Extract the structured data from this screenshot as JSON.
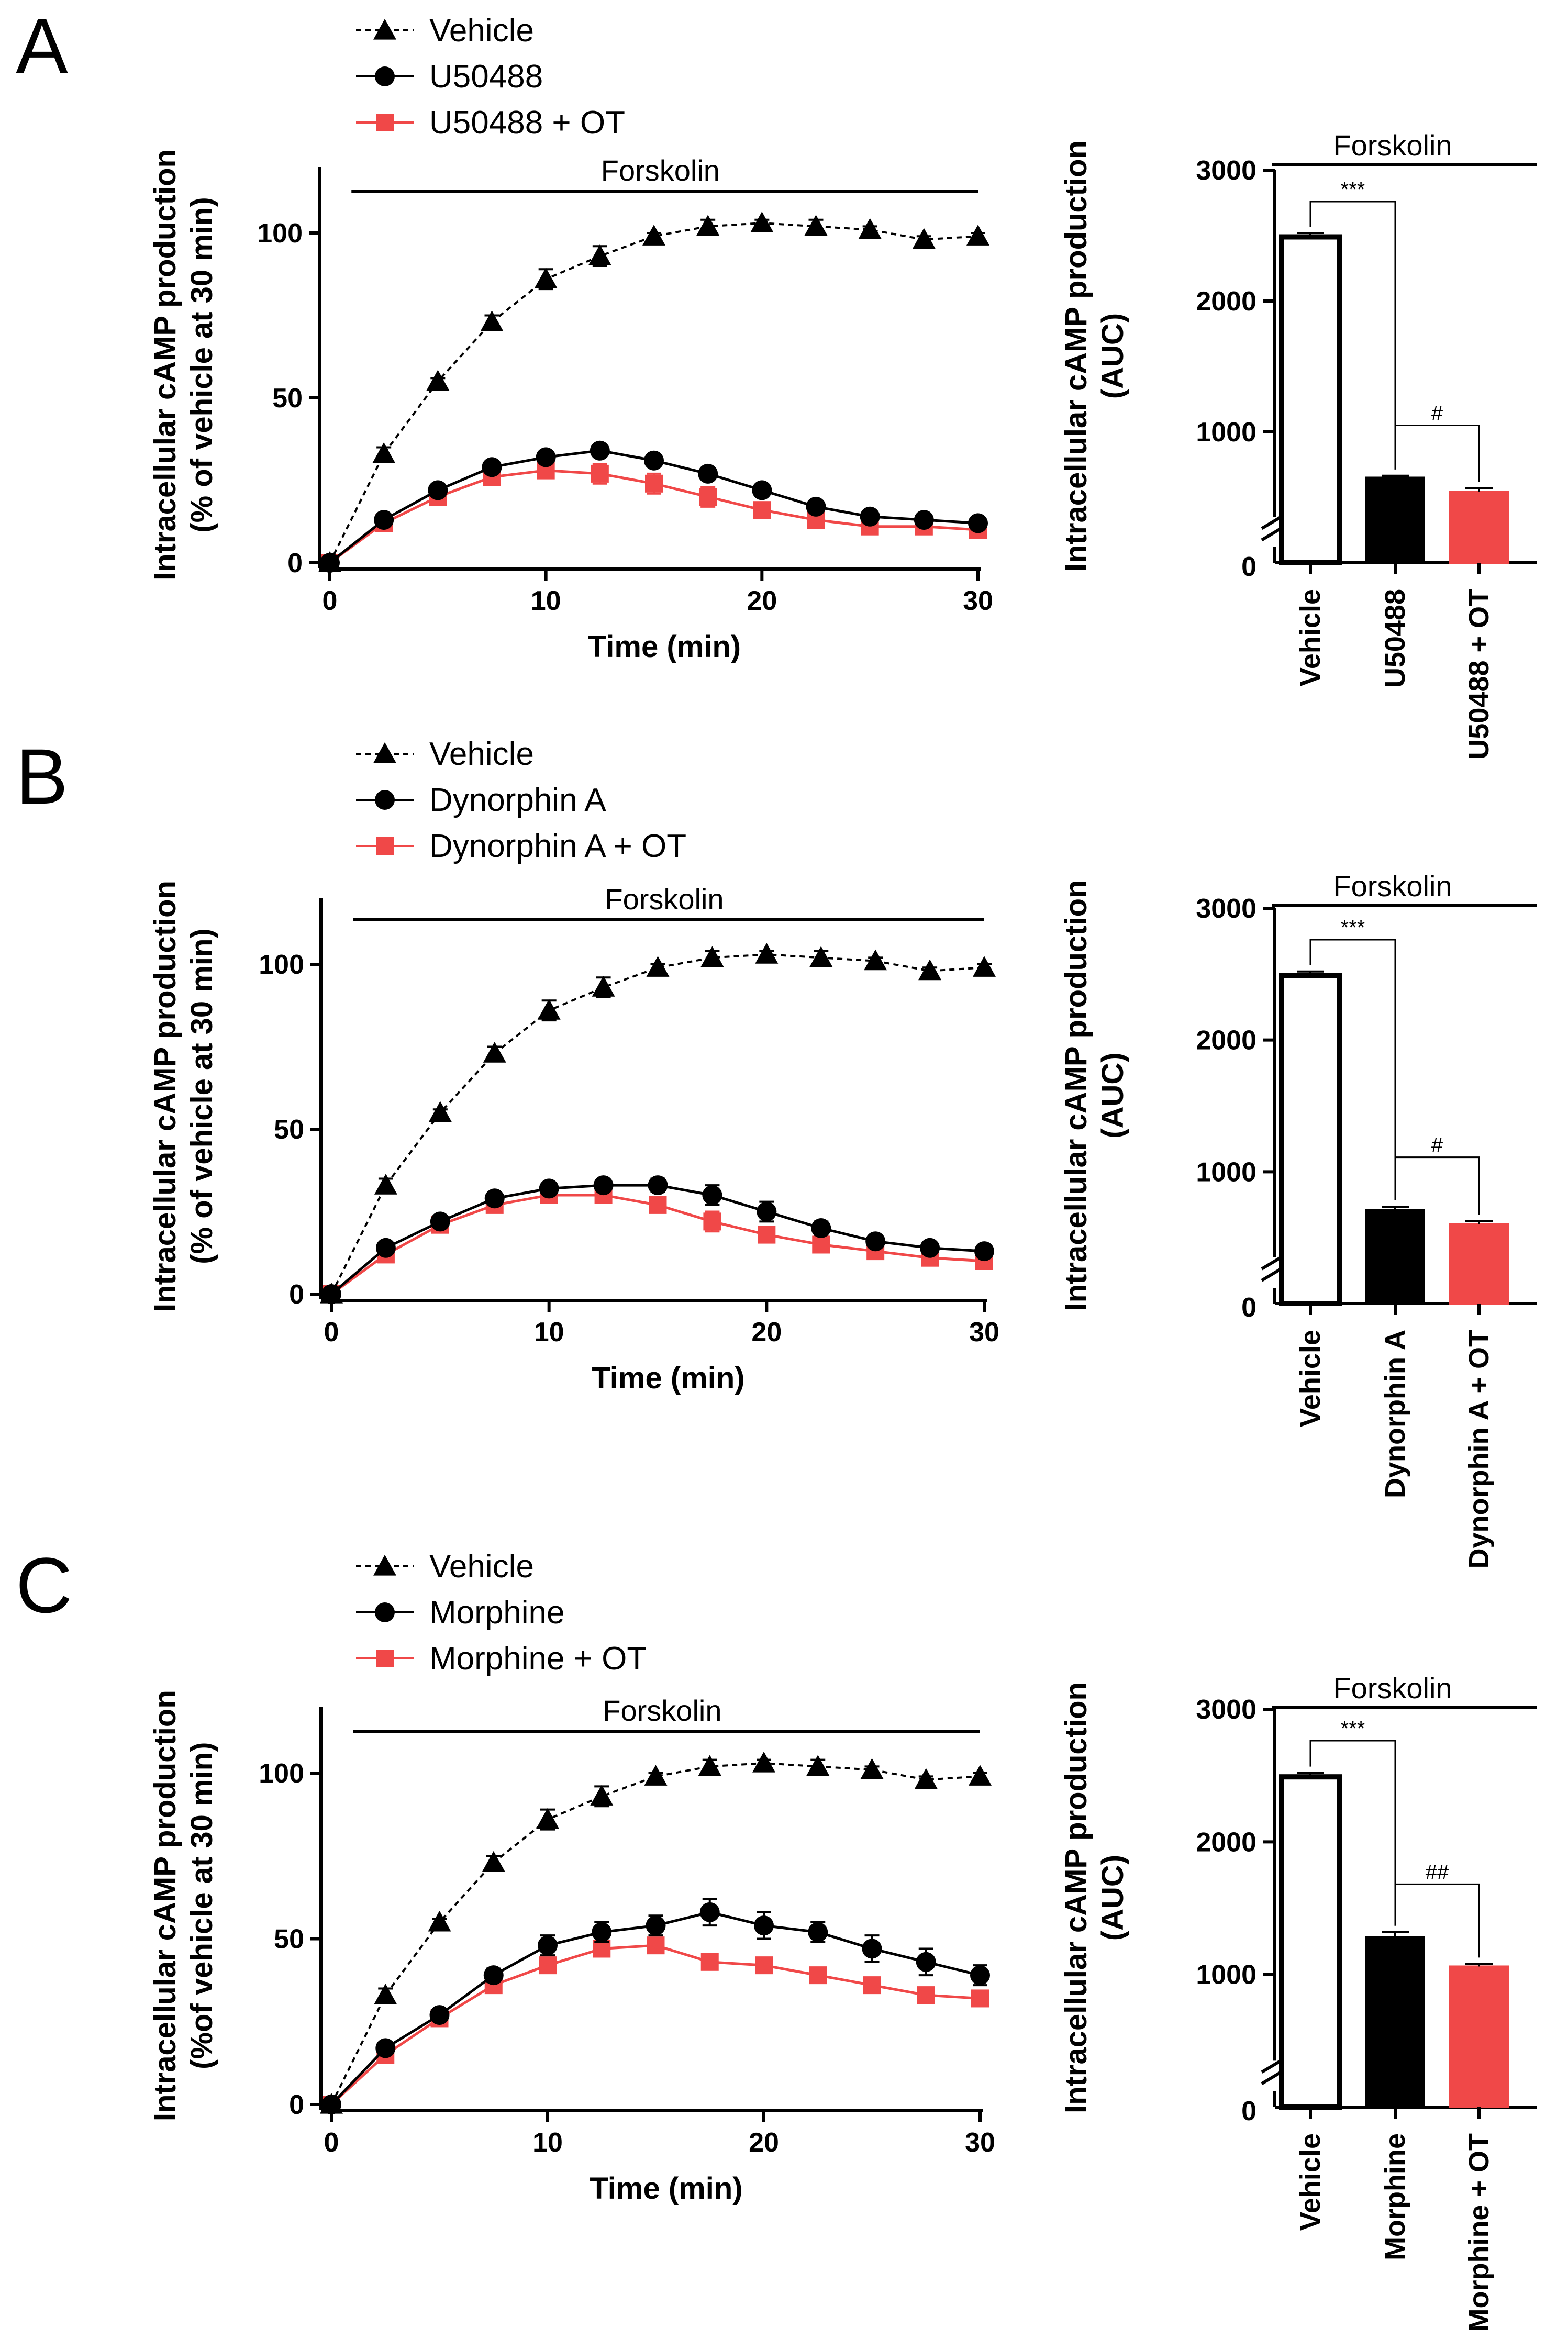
{
  "colors": {
    "vehicle": "#000000",
    "drug": "#000000",
    "drug_ot": "#f04848",
    "bar_vehicle_fill": "#ffffff"
  },
  "chart_data": [
    {
      "panel": "A",
      "type": "line",
      "title": "Forskolin",
      "xlabel": "Time (min)",
      "ylabel": [
        "Intracellular cAMP production",
        "(% of vehicle at 30 min)"
      ],
      "xlim": [
        0,
        30
      ],
      "ylim": [
        0,
        120
      ],
      "xticks": [
        0,
        10,
        20,
        30
      ],
      "yticks": [
        0,
        50,
        100
      ],
      "x": [
        0,
        2.5,
        5,
        7.5,
        10,
        12.5,
        15,
        17.5,
        20,
        22.5,
        25,
        27.5,
        30
      ],
      "series": [
        {
          "name": "Vehicle",
          "marker": "triangle",
          "values": [
            0,
            33,
            55,
            73,
            86,
            93,
            99,
            102,
            103,
            102,
            101,
            98,
            99
          ],
          "errors": [
            0,
            2,
            1,
            2,
            3,
            3,
            1,
            2,
            1,
            2,
            1,
            1,
            1
          ]
        },
        {
          "name": "U50488",
          "marker": "circle",
          "values": [
            0,
            13,
            22,
            29,
            32,
            34,
            31,
            27,
            22,
            17,
            14,
            13,
            12
          ],
          "errors": [
            0,
            1,
            1,
            1,
            1,
            1,
            1,
            1,
            1,
            1,
            1,
            1,
            1
          ]
        },
        {
          "name": "U50488 + OT",
          "marker": "square",
          "values": [
            0,
            12,
            20,
            26,
            28,
            27,
            24,
            20,
            16,
            13,
            11,
            11,
            10
          ],
          "errors": [
            0,
            1,
            1,
            2,
            2,
            3,
            3,
            3,
            1,
            1,
            1,
            1,
            1
          ]
        }
      ]
    },
    {
      "panel": "A",
      "type": "bar",
      "title": "Forskolin",
      "ylabel": [
        "Intracellular cAMP production",
        "(AUC)"
      ],
      "ylim": [
        0,
        3000
      ],
      "yticks": [
        0,
        1000,
        2000,
        3000
      ],
      "axis_break": true,
      "categories": [
        "Vehicle",
        "U50488",
        "U50488 + OT"
      ],
      "values": [
        2490,
        650,
        540
      ],
      "errors": [
        30,
        15,
        30
      ],
      "significance": [
        {
          "from": 0,
          "to": 1,
          "label": "***"
        },
        {
          "from": 1,
          "to": 2,
          "label": "#"
        }
      ]
    },
    {
      "panel": "B",
      "type": "line",
      "title": "Forskolin",
      "xlabel": "Time (min)",
      "ylabel": [
        "Intracellular cAMP production",
        "(% of vehicle at 30 min)"
      ],
      "xlim": [
        0,
        30
      ],
      "ylim": [
        0,
        120
      ],
      "xticks": [
        0,
        10,
        20,
        30
      ],
      "yticks": [
        0,
        50,
        100
      ],
      "x": [
        0,
        2.5,
        5,
        7.5,
        10,
        12.5,
        15,
        17.5,
        20,
        22.5,
        25,
        27.5,
        30
      ],
      "series": [
        {
          "name": "Vehicle",
          "marker": "triangle",
          "values": [
            0,
            33,
            55,
            73,
            86,
            93,
            99,
            102,
            103,
            102,
            101,
            98,
            99
          ],
          "errors": [
            0,
            2,
            1,
            2,
            3,
            3,
            1,
            2,
            1,
            2,
            1,
            1,
            1
          ]
        },
        {
          "name": "Dynorphin A",
          "marker": "circle",
          "values": [
            0,
            14,
            22,
            29,
            32,
            33,
            33,
            30,
            25,
            20,
            16,
            14,
            13
          ],
          "errors": [
            0,
            1,
            1,
            1,
            1,
            1,
            2,
            3,
            3,
            2,
            1,
            1,
            1
          ]
        },
        {
          "name": "Dynorphin A + OT",
          "marker": "square",
          "values": [
            0,
            12,
            21,
            27,
            30,
            30,
            27,
            22,
            18,
            15,
            13,
            11,
            10
          ],
          "errors": [
            0,
            1,
            1,
            1,
            1,
            1,
            2,
            3,
            2,
            1,
            1,
            1,
            1
          ]
        }
      ]
    },
    {
      "panel": "B",
      "type": "bar",
      "title": "Forskolin",
      "ylabel": [
        "Intracellular cAMP production",
        "(AUC)"
      ],
      "ylim": [
        0,
        3000
      ],
      "yticks": [
        0,
        1000,
        2000,
        3000
      ],
      "axis_break": true,
      "categories": [
        "Vehicle",
        "Dynorphin A",
        "Dynorphin A + OT"
      ],
      "values": [
        2490,
        710,
        600
      ],
      "errors": [
        30,
        25,
        25
      ],
      "significance": [
        {
          "from": 0,
          "to": 1,
          "label": "***"
        },
        {
          "from": 1,
          "to": 2,
          "label": "#"
        }
      ]
    },
    {
      "panel": "C",
      "type": "line",
      "title": "Forskolin",
      "xlabel": "Time (min)",
      "ylabel": [
        "Intracellular cAMP production",
        "(%of vehicle at 30 min)"
      ],
      "xlim": [
        0,
        30
      ],
      "ylim": [
        0,
        120
      ],
      "xticks": [
        0,
        10,
        20,
        30
      ],
      "yticks": [
        0,
        50,
        100
      ],
      "x": [
        0,
        2.5,
        5,
        7.5,
        10,
        12.5,
        15,
        17.5,
        20,
        22.5,
        25,
        27.5,
        30
      ],
      "series": [
        {
          "name": "Vehicle",
          "marker": "triangle",
          "values": [
            0,
            33,
            55,
            73,
            86,
            93,
            99,
            102,
            103,
            102,
            101,
            98,
            99
          ],
          "errors": [
            0,
            2,
            1,
            2,
            3,
            3,
            1,
            2,
            1,
            2,
            1,
            1,
            1
          ]
        },
        {
          "name": "Morphine",
          "marker": "circle",
          "values": [
            0,
            17,
            27,
            39,
            48,
            52,
            54,
            58,
            54,
            52,
            47,
            43,
            39
          ],
          "errors": [
            0,
            1,
            1,
            2,
            3,
            3,
            3,
            4,
            4,
            3,
            4,
            4,
            3
          ]
        },
        {
          "name": "Morphine +  OT",
          "marker": "square",
          "values": [
            0,
            15,
            26,
            36,
            42,
            47,
            48,
            43,
            42,
            39,
            36,
            33,
            32
          ],
          "errors": [
            0,
            1,
            1,
            2,
            2,
            2,
            2,
            2,
            1,
            1,
            1,
            1,
            1
          ]
        }
      ]
    },
    {
      "panel": "C",
      "type": "bar",
      "title": "Forskolin",
      "ylabel": [
        "Intracellular cAMP production",
        "(AUC)"
      ],
      "ylim": [
        0,
        3000
      ],
      "yticks": [
        0,
        1000,
        2000,
        3000
      ],
      "axis_break": true,
      "categories": [
        "Vehicle",
        "Morphine",
        "Morphine + OT"
      ],
      "values": [
        2490,
        1280,
        1060
      ],
      "errors": [
        30,
        40,
        20
      ],
      "significance": [
        {
          "from": 0,
          "to": 1,
          "label": "***"
        },
        {
          "from": 1,
          "to": 2,
          "label": "##"
        }
      ]
    }
  ],
  "panels": [
    {
      "letter": "A",
      "legend": [
        "Vehicle",
        "U50488",
        "U50488 + OT"
      ]
    },
    {
      "letter": "B",
      "legend": [
        "Vehicle",
        "Dynorphin A",
        "Dynorphin A + OT"
      ]
    },
    {
      "letter": "C",
      "legend": [
        "Vehicle",
        "Morphine",
        "Morphine +  OT"
      ]
    }
  ]
}
